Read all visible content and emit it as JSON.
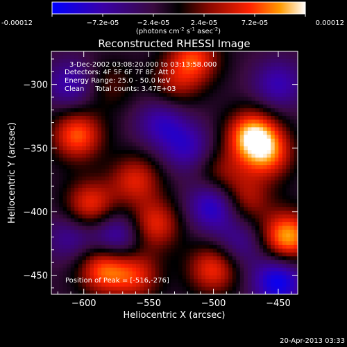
{
  "chart_data": {
    "type": "heatmap",
    "title": "Reconstructed RHESSI Image",
    "xlabel": "Heliocentric X (arcsec)",
    "ylabel": "Heliocentric Y (arcsec)",
    "xlim": [
      -625,
      -435
    ],
    "ylim": [
      -465,
      -274
    ],
    "x_ticks": [
      -600,
      -550,
      -500,
      -450
    ],
    "y_ticks": [
      -300,
      -350,
      -400,
      -450
    ],
    "colorbar": {
      "range": [
        -0.00012,
        0.00012
      ],
      "tick_values": [
        -0.00012,
        -7.2e-05,
        -2.4e-05,
        2.4e-05,
        7.2e-05,
        0.00012
      ],
      "tick_labels": [
        "-0.00012",
        "−7.2e-05",
        "−2.4e-05",
        "2.4e-05",
        "7.2e-05",
        "0.00012"
      ],
      "unit_label": "(photons cm",
      "unit_exp1": "-2",
      "unit_mid": " s",
      "unit_exp2": "-1",
      "unit_mid2": " asec",
      "unit_exp3": "-2",
      "unit_end": ")"
    },
    "annotations": {
      "line1": "3-Dec-2002 03:08:20.000 to 03:13:58.000",
      "line2": "Detectors: 4F 5F 6F 7F 8F, Att 0",
      "line3": "Energy Range: 25.0 - 50.0 keV",
      "line4": "Clean     Total counts: 3.47E+03",
      "peak": "Position of Peak = [-516,-276]"
    },
    "peak_position": [
      -516,
      -276
    ],
    "sources": [
      {
        "x": -470,
        "y": -340,
        "value": 1.0
      },
      {
        "x": -458,
        "y": -355,
        "value": 0.7
      },
      {
        "x": -443,
        "y": -420,
        "value": 1.0
      },
      {
        "x": -475,
        "y": -390,
        "value": 0.5
      },
      {
        "x": -515,
        "y": -280,
        "value": 0.7
      },
      {
        "x": -605,
        "y": -340,
        "value": 0.8
      },
      {
        "x": -595,
        "y": -395,
        "value": 0.7
      },
      {
        "x": -585,
        "y": -445,
        "value": 0.8
      },
      {
        "x": -560,
        "y": -375,
        "value": 0.6
      },
      {
        "x": -545,
        "y": -410,
        "value": 0.65
      },
      {
        "x": -500,
        "y": -445,
        "value": 0.7
      },
      {
        "x": -560,
        "y": -450,
        "value": 0.6
      },
      {
        "x": -530,
        "y": -300,
        "value": 0.4
      },
      {
        "x": -495,
        "y": -370,
        "value": 0.4
      },
      {
        "x": -580,
        "y": -300,
        "value": 0.3
      },
      {
        "x": -540,
        "y": -330,
        "value": -0.5
      },
      {
        "x": -500,
        "y": -395,
        "value": -0.7
      },
      {
        "x": -575,
        "y": -420,
        "value": -0.6
      },
      {
        "x": -610,
        "y": -300,
        "value": -0.5
      },
      {
        "x": -450,
        "y": -300,
        "value": -0.5
      },
      {
        "x": -450,
        "y": -455,
        "value": -0.8
      },
      {
        "x": -520,
        "y": -350,
        "value": -0.5
      },
      {
        "x": -610,
        "y": -420,
        "value": -0.4
      },
      {
        "x": -480,
        "y": -425,
        "value": -0.4
      }
    ]
  },
  "footer": {
    "timestamp": "20-Apr-2013 03:33"
  }
}
